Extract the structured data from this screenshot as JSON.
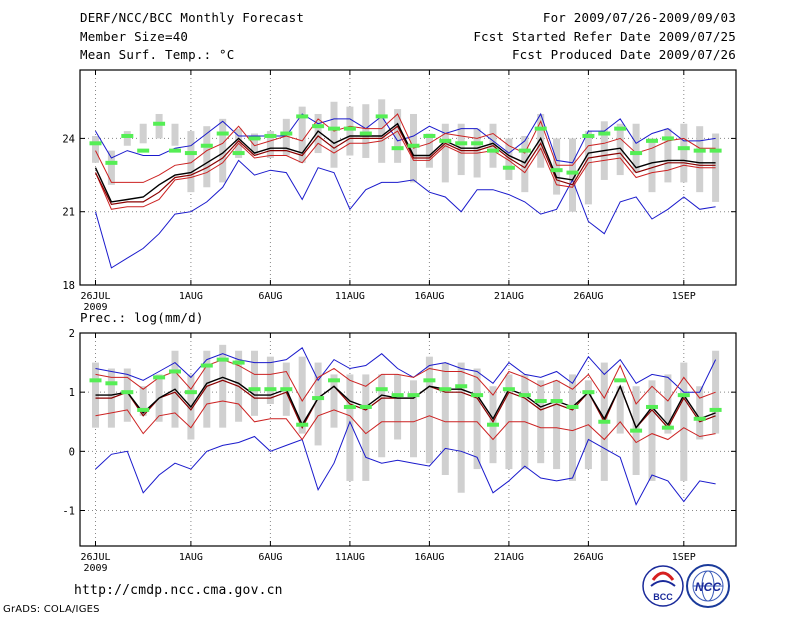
{
  "header": {
    "title": "DERF/NCC/BCC Monthly Forecast",
    "member_size": "Member Size=40",
    "variable": "Mean Surf. Temp.: °C",
    "period": "For 2009/07/26-2009/09/03",
    "start_date": "Fcst Started Refer Date 2009/07/25",
    "produced_date": "Fcst Produced Date 2009/07/26"
  },
  "footer": {
    "url": "http://cmdp.ncc.cma.gov.cn",
    "credit": "GrADS: COLA/IGES",
    "logo_bcc": "BCC",
    "logo_ncc": "NCC"
  },
  "colors": {
    "box": "#d0d0d0",
    "median": "#55ee55",
    "mean": "#000000",
    "ctl": "#8b0000",
    "inner": "#cc2222",
    "outer": "#1a1acc",
    "grid": "#888888"
  },
  "chart_data": [
    {
      "type": "line",
      "title": "Mean Surf. Temp.: °C",
      "xlabels": [
        "26JUL",
        "1AUG",
        "6AUG",
        "11AUG",
        "16AUG",
        "21AUG",
        "26AUG",
        "1SEP"
      ],
      "xlabels_year": "2009",
      "xlabel_days": [
        1,
        7,
        12,
        17,
        22,
        27,
        32,
        38
      ],
      "yticks": [
        18,
        21,
        24
      ],
      "ylim": [
        18,
        26.8
      ],
      "days": [
        1,
        2,
        3,
        4,
        5,
        6,
        7,
        8,
        9,
        10,
        11,
        12,
        13,
        14,
        15,
        16,
        17,
        18,
        19,
        20,
        21,
        22,
        23,
        24,
        25,
        26,
        27,
        28,
        29,
        30,
        31,
        32,
        33,
        34,
        35,
        36,
        37,
        38,
        39,
        40
      ],
      "series": [
        {
          "name": "box_high",
          "values": [
            24.1,
            23.5,
            24.3,
            24.6,
            25.0,
            24.6,
            24.3,
            24.5,
            24.8,
            24.4,
            24.2,
            24.3,
            24.8,
            25.3,
            25.0,
            25.5,
            25.3,
            25.4,
            25.6,
            25.2,
            25.0,
            24.2,
            24.6,
            24.6,
            24.4,
            24.6,
            24.0,
            24.1,
            25.0,
            24.0,
            24.0,
            24.3,
            24.7,
            24.6,
            24.6,
            24.0,
            24.4,
            24.6,
            24.5,
            24.2
          ]
        },
        {
          "name": "box_low",
          "values": [
            23.0,
            22.1,
            23.7,
            23.8,
            24.0,
            23.7,
            21.8,
            22.0,
            22.2,
            23.2,
            23.3,
            23.2,
            23.3,
            23.0,
            23.4,
            22.8,
            23.3,
            23.2,
            23.0,
            23.0,
            22.2,
            22.8,
            22.2,
            22.5,
            22.4,
            22.8,
            22.3,
            21.8,
            22.8,
            21.7,
            21.0,
            21.3,
            22.3,
            22.5,
            22.6,
            21.8,
            22.2,
            22.2,
            21.8,
            21.4
          ]
        },
        {
          "name": "median",
          "values": [
            23.8,
            23.0,
            24.1,
            23.5,
            24.6,
            23.5,
            23.4,
            23.7,
            24.2,
            23.4,
            24.0,
            24.1,
            24.2,
            24.9,
            24.5,
            24.4,
            24.4,
            24.2,
            24.9,
            23.6,
            23.7,
            24.1,
            23.9,
            23.8,
            23.8,
            23.5,
            22.8,
            23.5,
            24.4,
            22.7,
            22.6,
            24.1,
            24.2,
            24.4,
            23.4,
            23.9,
            24.0,
            23.6,
            23.5,
            23.5
          ]
        },
        {
          "name": "outer_low",
          "values": [
            21.0,
            18.7,
            19.1,
            19.5,
            20.1,
            20.9,
            21.0,
            21.4,
            22.0,
            23.1,
            22.5,
            22.7,
            22.6,
            21.5,
            22.8,
            22.6,
            21.1,
            21.9,
            22.2,
            22.2,
            22.3,
            21.8,
            21.6,
            21.0,
            21.9,
            21.9,
            21.7,
            21.4,
            20.9,
            21.1,
            22.3,
            20.6,
            20.1,
            21.4,
            21.6,
            20.7,
            21.1,
            21.6,
            21.1,
            21.2
          ]
        },
        {
          "name": "inner_low",
          "values": [
            22.6,
            21.1,
            21.2,
            21.2,
            21.5,
            22.3,
            22.4,
            22.6,
            23.0,
            23.8,
            23.2,
            23.3,
            23.3,
            23.0,
            23.8,
            23.4,
            23.8,
            23.8,
            23.9,
            24.3,
            23.1,
            23.1,
            23.7,
            23.4,
            23.4,
            23.5,
            23.1,
            22.6,
            23.6,
            22.1,
            22.0,
            23.0,
            23.1,
            23.2,
            22.4,
            22.6,
            22.7,
            22.9,
            22.8,
            22.8
          ]
        },
        {
          "name": "ctl",
          "values": [
            22.6,
            21.3,
            21.4,
            21.4,
            21.8,
            22.4,
            22.5,
            22.8,
            23.2,
            23.9,
            23.3,
            23.5,
            23.5,
            23.3,
            24.1,
            23.6,
            24.0,
            24.0,
            24.0,
            24.5,
            23.2,
            23.2,
            23.8,
            23.5,
            23.5,
            23.7,
            23.2,
            22.8,
            23.8,
            22.3,
            22.1,
            23.2,
            23.3,
            23.4,
            22.6,
            22.8,
            23.0,
            23.0,
            22.9,
            22.9
          ]
        },
        {
          "name": "mean",
          "values": [
            22.8,
            21.4,
            21.5,
            21.6,
            22.1,
            22.5,
            22.6,
            23.0,
            23.4,
            24.0,
            23.4,
            23.6,
            23.6,
            23.4,
            24.3,
            23.8,
            24.1,
            24.1,
            24.1,
            24.6,
            23.3,
            23.3,
            23.9,
            23.6,
            23.6,
            23.8,
            23.3,
            23.0,
            24.0,
            22.4,
            22.3,
            23.4,
            23.5,
            23.6,
            22.8,
            23.0,
            23.1,
            23.1,
            23.0,
            23.0
          ]
        },
        {
          "name": "inner_high",
          "values": [
            23.5,
            22.2,
            22.2,
            22.2,
            22.5,
            22.9,
            23.0,
            23.5,
            23.8,
            24.5,
            23.7,
            23.9,
            24.1,
            23.9,
            24.8,
            24.3,
            24.5,
            24.4,
            24.4,
            25.0,
            23.6,
            23.8,
            24.2,
            24.1,
            24.0,
            24.2,
            23.7,
            23.4,
            24.7,
            22.9,
            22.9,
            23.7,
            23.8,
            24.0,
            23.4,
            23.6,
            23.9,
            24.0,
            23.6,
            23.6
          ]
        },
        {
          "name": "outer_high",
          "values": [
            24.3,
            23.2,
            23.5,
            23.3,
            23.3,
            23.6,
            23.7,
            24.2,
            24.7,
            24.1,
            24.1,
            24.1,
            24.1,
            25.0,
            24.6,
            24.8,
            24.8,
            24.4,
            24.9,
            23.9,
            24.1,
            24.5,
            24.2,
            24.4,
            24.4,
            23.9,
            23.4,
            23.9,
            25.0,
            23.1,
            23.0,
            24.3,
            24.3,
            24.8,
            23.8,
            24.2,
            24.4,
            23.9,
            23.9,
            24.0
          ]
        }
      ]
    },
    {
      "type": "line",
      "title": "Prec.: log(mm/d)",
      "xlabels": [
        "26JUL",
        "1AUG",
        "6AUG",
        "11AUG",
        "16AUG",
        "21AUG",
        "26AUG",
        "1SEP"
      ],
      "xlabels_year": "2009",
      "xlabel_days": [
        1,
        7,
        12,
        17,
        22,
        27,
        32,
        38
      ],
      "yticks": [
        -1,
        0,
        1,
        2
      ],
      "ylim": [
        -1.6,
        2.0
      ],
      "days": [
        1,
        2,
        3,
        4,
        5,
        6,
        7,
        8,
        9,
        10,
        11,
        12,
        13,
        14,
        15,
        16,
        17,
        18,
        19,
        20,
        21,
        22,
        23,
        24,
        25,
        26,
        27,
        28,
        29,
        30,
        31,
        32,
        33,
        34,
        35,
        36,
        37,
        38,
        39,
        40
      ],
      "series": [
        {
          "name": "box_high",
          "values": [
            1.5,
            1.4,
            1.4,
            1.1,
            1.3,
            1.7,
            1.3,
            1.7,
            1.8,
            1.7,
            1.7,
            1.6,
            1.5,
            1.6,
            1.5,
            1.3,
            1.3,
            1.3,
            1.3,
            1.3,
            1.2,
            1.6,
            1.5,
            1.5,
            1.4,
            1.1,
            1.3,
            1.3,
            1.2,
            1.2,
            1.3,
            1.2,
            1.5,
            1.1,
            1.1,
            1.2,
            1.3,
            1.5,
            1.1,
            1.7
          ]
        },
        {
          "name": "box_low",
          "values": [
            0.4,
            0.4,
            0.5,
            0.6,
            0.5,
            0.4,
            0.2,
            0.4,
            0.4,
            0.5,
            0.6,
            0.8,
            0.6,
            0.3,
            0.1,
            0.4,
            -0.5,
            -0.5,
            -0.1,
            0.2,
            -0.1,
            -0.2,
            -0.4,
            -0.7,
            -0.3,
            -0.2,
            -0.3,
            -0.3,
            -0.2,
            -0.3,
            -0.5,
            -0.3,
            -0.5,
            0.3,
            -0.4,
            -0.5,
            0.3,
            -0.5,
            0.2,
            0.3
          ]
        },
        {
          "name": "median",
          "values": [
            1.2,
            1.15,
            1.0,
            0.7,
            1.25,
            1.35,
            1.0,
            1.45,
            1.55,
            1.5,
            1.05,
            1.05,
            1.05,
            0.45,
            0.9,
            1.2,
            0.75,
            0.75,
            1.05,
            0.95,
            0.95,
            1.2,
            1.05,
            1.1,
            0.95,
            0.45,
            1.05,
            0.95,
            0.85,
            0.85,
            0.75,
            1.0,
            0.5,
            1.2,
            0.35,
            0.75,
            0.4,
            0.95,
            0.55,
            0.7
          ]
        },
        {
          "name": "outer_low",
          "values": [
            -0.3,
            -0.05,
            0.0,
            -0.7,
            -0.4,
            -0.2,
            -0.3,
            0.0,
            0.1,
            0.15,
            0.25,
            0.0,
            0.1,
            0.2,
            -0.65,
            -0.2,
            0.5,
            -0.1,
            -0.2,
            -0.15,
            -0.2,
            -0.25,
            0.05,
            0.0,
            -0.1,
            -0.7,
            -0.5,
            -0.25,
            -0.45,
            -0.5,
            -0.45,
            0.2,
            0.05,
            -0.1,
            -0.9,
            -0.4,
            -0.5,
            -0.85,
            -0.5,
            -0.55
          ]
        },
        {
          "name": "inner_low",
          "values": [
            0.6,
            0.65,
            0.7,
            0.3,
            0.6,
            0.65,
            0.4,
            0.8,
            0.85,
            0.8,
            0.5,
            0.55,
            0.55,
            0.2,
            0.6,
            0.7,
            0.6,
            0.3,
            0.5,
            0.5,
            0.5,
            0.6,
            0.5,
            0.5,
            0.5,
            0.2,
            0.5,
            0.5,
            0.4,
            0.4,
            0.35,
            0.45,
            0.2,
            0.5,
            0.15,
            0.3,
            0.2,
            0.4,
            0.25,
            0.3
          ]
        },
        {
          "name": "ctl",
          "values": [
            0.9,
            0.9,
            1.0,
            0.6,
            0.9,
            1.0,
            0.7,
            1.1,
            1.2,
            1.1,
            0.9,
            0.9,
            1.0,
            0.4,
            0.9,
            1.1,
            0.8,
            0.7,
            0.9,
            0.9,
            0.9,
            1.1,
            1.0,
            1.0,
            0.9,
            0.5,
            1.0,
            0.9,
            0.7,
            0.8,
            0.7,
            1.0,
            0.5,
            1.1,
            0.4,
            0.7,
            0.4,
            0.9,
            0.5,
            0.6
          ]
        },
        {
          "name": "mean",
          "values": [
            0.95,
            0.95,
            1.0,
            0.65,
            0.9,
            1.05,
            0.75,
            1.15,
            1.25,
            1.15,
            0.95,
            0.95,
            1.05,
            0.45,
            0.9,
            1.1,
            0.85,
            0.75,
            0.95,
            0.9,
            0.9,
            1.1,
            1.05,
            1.05,
            0.95,
            0.55,
            1.05,
            0.95,
            0.75,
            0.85,
            0.75,
            1.0,
            0.55,
            1.1,
            0.4,
            0.75,
            0.45,
            0.95,
            0.55,
            0.65
          ]
        },
        {
          "name": "inner_high",
          "values": [
            1.3,
            1.25,
            1.25,
            1.05,
            1.25,
            1.35,
            1.05,
            1.45,
            1.55,
            1.45,
            1.3,
            1.3,
            1.35,
            0.85,
            1.25,
            1.4,
            1.2,
            1.1,
            1.3,
            1.3,
            1.25,
            1.4,
            1.35,
            1.35,
            1.25,
            0.95,
            1.35,
            1.25,
            1.1,
            1.2,
            1.05,
            1.3,
            0.9,
            1.45,
            0.8,
            1.1,
            0.85,
            1.25,
            0.9,
            1.0
          ]
        },
        {
          "name": "outer_high",
          "values": [
            1.4,
            1.35,
            1.3,
            1.2,
            1.35,
            1.5,
            1.25,
            1.55,
            1.65,
            1.55,
            1.5,
            1.5,
            1.55,
            1.75,
            1.2,
            1.55,
            1.4,
            1.45,
            1.65,
            1.4,
            1.25,
            1.45,
            1.5,
            1.4,
            1.35,
            1.15,
            1.5,
            1.3,
            1.25,
            1.35,
            1.15,
            1.6,
            1.3,
            1.55,
            1.15,
            1.3,
            1.25,
            1.0,
            1.0,
            1.55
          ]
        }
      ]
    }
  ]
}
